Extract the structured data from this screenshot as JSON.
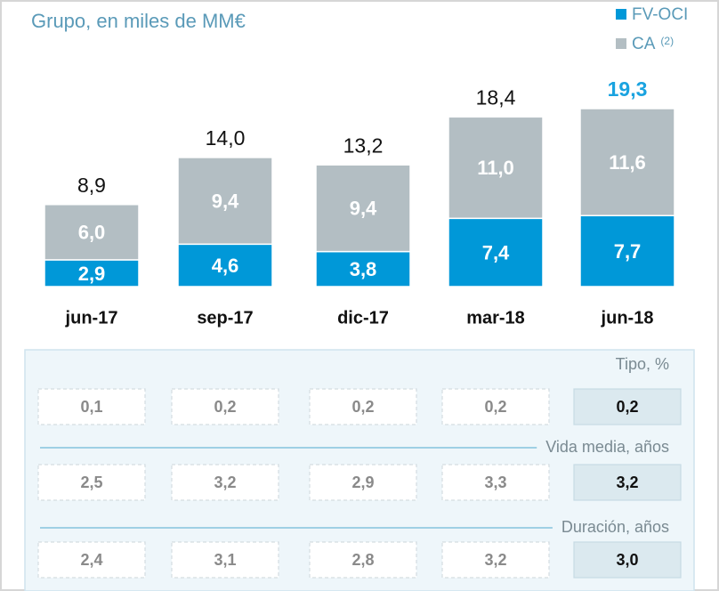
{
  "chart_data": {
    "type": "bar",
    "stacked": true,
    "title": "Grupo, en miles de MM€",
    "categories": [
      "jun-17",
      "sep-17",
      "dic-17",
      "mar-18",
      "jun-18"
    ],
    "series": [
      {
        "name": "FV-OCI",
        "color": "#0098d8",
        "values": [
          2.9,
          4.6,
          3.8,
          7.4,
          7.7
        ],
        "value_labels": [
          "2,9",
          "4,6",
          "3,8",
          "7,4",
          "7,7"
        ]
      },
      {
        "name": "CA",
        "name_note": "(2)",
        "color": "#b3bec3",
        "values": [
          6.0,
          9.4,
          9.4,
          11.0,
          11.6
        ],
        "value_labels": [
          "6,0",
          "9,4",
          "9,4",
          "11,0",
          "11,6"
        ]
      }
    ],
    "totals": [
      8.9,
      14.0,
      13.2,
      18.4,
      19.3
    ],
    "total_labels": [
      "8,9",
      "14,0",
      "13,2",
      "18,4",
      "19,3"
    ],
    "legend": "top-right"
  },
  "table": {
    "rows": [
      {
        "label": "Tipo, %",
        "values": [
          "0,1",
          "0,2",
          "0,2",
          "0,2",
          "0,2"
        ]
      },
      {
        "label": "Vida media, años",
        "values": [
          "2,5",
          "3,2",
          "2,9",
          "3,3",
          "3,2"
        ]
      },
      {
        "label": "Duración, años",
        "values": [
          "2,4",
          "3,1",
          "2,8",
          "3,2",
          "3,0"
        ]
      }
    ]
  }
}
